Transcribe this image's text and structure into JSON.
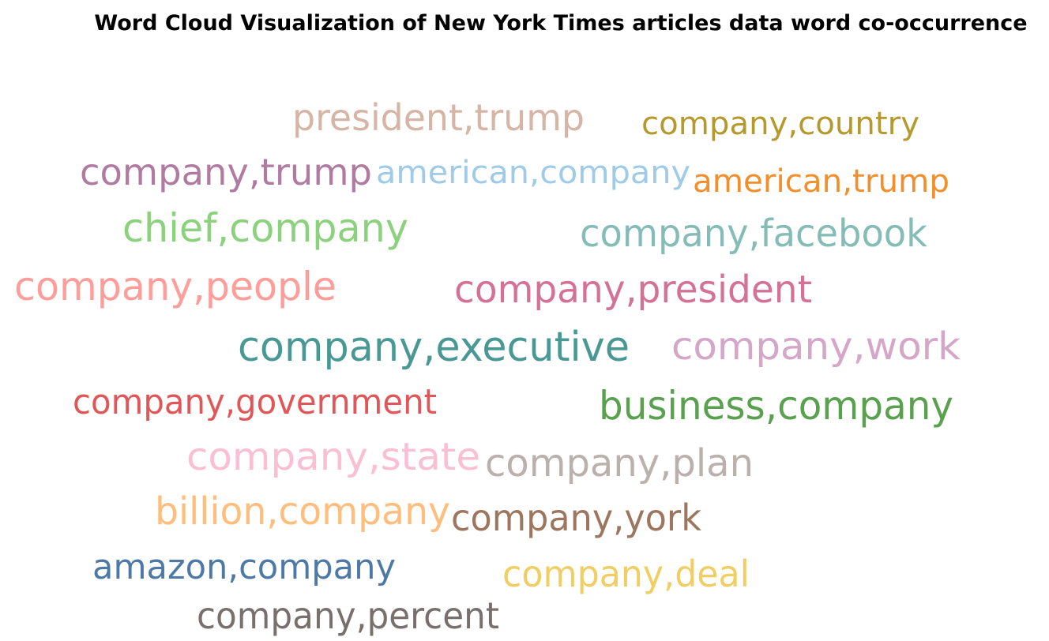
{
  "chart_data": {
    "type": "wordcloud",
    "title": "Word Cloud Visualization of New York Times articles data word co-occurrence",
    "words": [
      {
        "text": "president,trump",
        "color": "#d7b5a6"
      },
      {
        "text": "company,country",
        "color": "#b6992d"
      },
      {
        "text": "company,trump",
        "color": "#b07aa1"
      },
      {
        "text": "american,company",
        "color": "#a0cbe8"
      },
      {
        "text": "american,trump",
        "color": "#f28e2b"
      },
      {
        "text": "chief,company",
        "color": "#8cd17d"
      },
      {
        "text": "company,facebook",
        "color": "#86bcb6"
      },
      {
        "text": "company,people",
        "color": "#ff9d9a"
      },
      {
        "text": "company,president",
        "color": "#d37295"
      },
      {
        "text": "company,executive",
        "color": "#499894"
      },
      {
        "text": "company,work",
        "color": "#d4a6c8"
      },
      {
        "text": "company,government",
        "color": "#e15759"
      },
      {
        "text": "business,company",
        "color": "#59a14f"
      },
      {
        "text": "company,state",
        "color": "#fabfd2"
      },
      {
        "text": "company,plan",
        "color": "#bab0ac"
      },
      {
        "text": "billion,company",
        "color": "#ffbe7d"
      },
      {
        "text": "company,york",
        "color": "#9d7660"
      },
      {
        "text": "amazon,company",
        "color": "#4e79a7"
      },
      {
        "text": "company,deal",
        "color": "#f1ce63"
      },
      {
        "text": "company,percent",
        "color": "#79706e"
      }
    ]
  }
}
